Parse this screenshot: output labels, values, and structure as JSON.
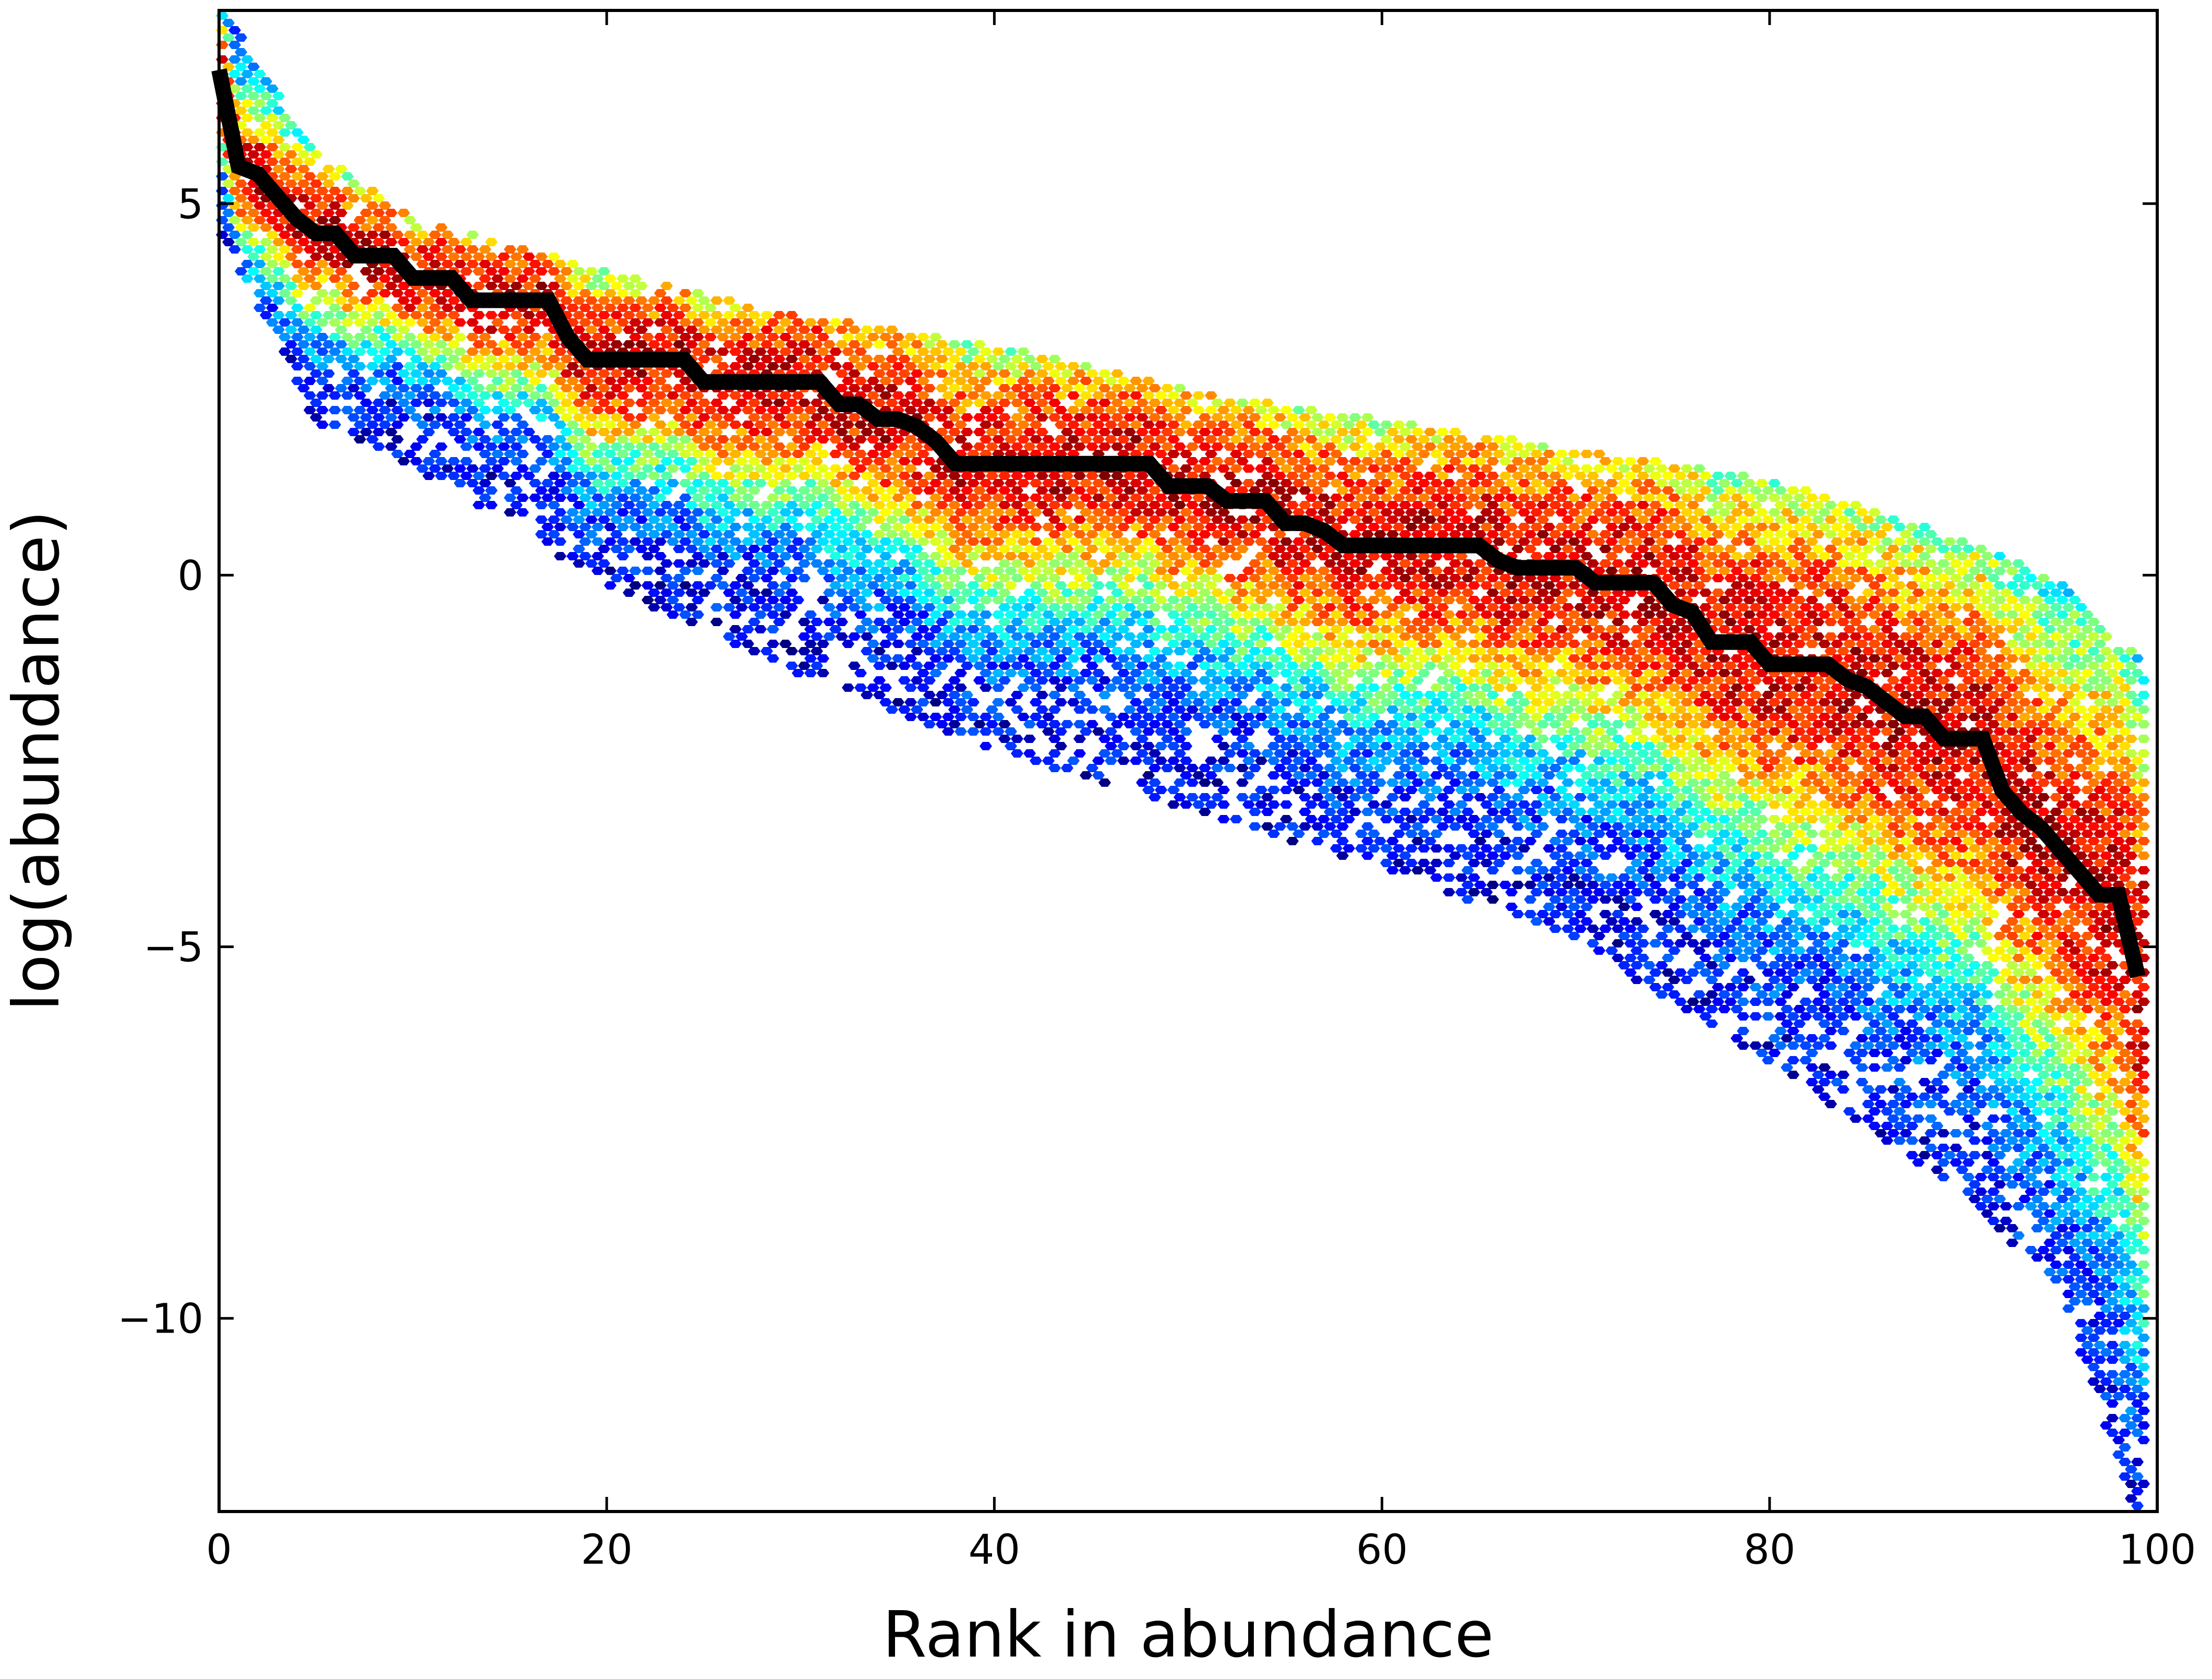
{
  "chart_data": {
    "type": "hexbin",
    "xlabel": "Rank in abundance",
    "ylabel": "log(abundance)",
    "xlim": [
      0,
      100
    ],
    "ylim": [
      -12.6,
      7.6
    ],
    "xticks": [
      0,
      20,
      40,
      60,
      80,
      100
    ],
    "yticks": [
      5,
      0,
      -5,
      -10
    ],
    "xtick_labels": [
      "0",
      "20",
      "40",
      "60",
      "80",
      "100"
    ],
    "ytick_labels": [
      "5",
      "0",
      "−5",
      "−10"
    ],
    "grid": false,
    "colormap": "jet",
    "density_band": {
      "description_points": [
        {
          "x": 0,
          "lower": 4.8,
          "upper": 7.6
        },
        {
          "x": 5,
          "lower": 2.2,
          "upper": 5.6
        },
        {
          "x": 10,
          "lower": 1.6,
          "upper": 4.7
        },
        {
          "x": 20,
          "lower": 0.0,
          "upper": 4.0
        },
        {
          "x": 30,
          "lower": -1.2,
          "upper": 3.4
        },
        {
          "x": 40,
          "lower": -2.2,
          "upper": 3.0
        },
        {
          "x": 50,
          "lower": -3.0,
          "upper": 2.4
        },
        {
          "x": 60,
          "lower": -3.8,
          "upper": 2.0
        },
        {
          "x": 70,
          "lower": -4.8,
          "upper": 1.6
        },
        {
          "x": 80,
          "lower": -6.4,
          "upper": 1.2
        },
        {
          "x": 90,
          "lower": -8.2,
          "upper": 0.4
        },
        {
          "x": 95,
          "lower": -9.5,
          "upper": -0.2
        },
        {
          "x": 99,
          "lower": -12.6,
          "upper": -1.2
        }
      ]
    },
    "median_line": {
      "color": "#000000",
      "x": [
        0,
        1,
        2,
        3,
        4,
        5,
        6,
        7,
        8,
        9,
        10,
        11,
        12,
        13,
        14,
        15,
        16,
        17,
        18,
        19,
        20,
        21,
        22,
        23,
        24,
        25,
        26,
        27,
        28,
        29,
        30,
        31,
        32,
        33,
        34,
        35,
        36,
        37,
        38,
        39,
        40,
        41,
        42,
        43,
        44,
        45,
        46,
        47,
        48,
        49,
        50,
        51,
        52,
        53,
        54,
        55,
        56,
        57,
        58,
        59,
        60,
        61,
        62,
        63,
        64,
        65,
        66,
        67,
        68,
        69,
        70,
        71,
        72,
        73,
        74,
        75,
        76,
        77,
        78,
        79,
        80,
        81,
        82,
        83,
        84,
        85,
        86,
        87,
        88,
        89,
        90,
        91,
        92,
        93,
        94,
        95,
        96,
        97,
        98,
        99
      ],
      "y": [
        6.8,
        5.5,
        5.4,
        5.1,
        4.8,
        4.6,
        4.6,
        4.3,
        4.3,
        4.3,
        4.0,
        4.0,
        4.0,
        3.7,
        3.7,
        3.7,
        3.7,
        3.7,
        3.2,
        2.9,
        2.9,
        2.9,
        2.9,
        2.9,
        2.9,
        2.6,
        2.6,
        2.6,
        2.6,
        2.6,
        2.6,
        2.6,
        2.3,
        2.3,
        2.1,
        2.1,
        2.0,
        1.8,
        1.5,
        1.5,
        1.5,
        1.5,
        1.5,
        1.5,
        1.5,
        1.5,
        1.5,
        1.5,
        1.5,
        1.2,
        1.2,
        1.2,
        1.0,
        1.0,
        1.0,
        0.7,
        0.7,
        0.6,
        0.4,
        0.4,
        0.4,
        0.4,
        0.4,
        0.4,
        0.4,
        0.4,
        0.2,
        0.1,
        0.1,
        0.1,
        0.1,
        -0.1,
        -0.1,
        -0.1,
        -0.1,
        -0.4,
        -0.5,
        -0.9,
        -0.9,
        -0.9,
        -1.2,
        -1.2,
        -1.2,
        -1.2,
        -1.4,
        -1.5,
        -1.7,
        -1.9,
        -1.9,
        -2.2,
        -2.2,
        -2.2,
        -2.9,
        -3.2,
        -3.4,
        -3.7,
        -4.0,
        -4.3,
        -4.3,
        -5.4
      ]
    }
  }
}
